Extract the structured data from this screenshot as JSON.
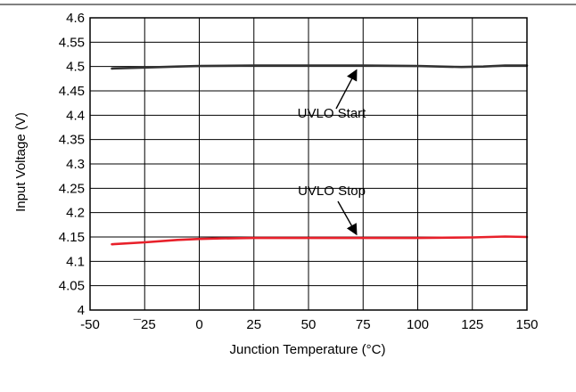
{
  "chart_data": {
    "type": "line",
    "title": "",
    "xlabel": "Junction Temperature (°C)",
    "ylabel": "Input Voltage (V)",
    "xlim": [
      -50,
      150
    ],
    "ylim": [
      4,
      4.6
    ],
    "xticks": [
      -50,
      -25,
      0,
      25,
      50,
      75,
      100,
      125,
      150
    ],
    "xtick_labels": [
      "-50",
      "¯25",
      "0",
      "25",
      "50",
      "75",
      "100",
      "125",
      "150"
    ],
    "yticks": [
      4,
      4.05,
      4.1,
      4.15,
      4.2,
      4.25,
      4.3,
      4.35,
      4.4,
      4.45,
      4.5,
      4.55,
      4.6
    ],
    "ytick_labels": [
      "4",
      "4.05",
      "4.1",
      "4.15",
      "4.2",
      "4.25",
      "4.3",
      "4.35",
      "4.4",
      "4.45",
      "4.5",
      "4.55",
      "4.6"
    ],
    "grid": true,
    "series": [
      {
        "name": "UVLO Start",
        "color": "#333333",
        "x": [
          -40,
          -25,
          -10,
          0,
          25,
          50,
          75,
          100,
          110,
          120,
          130,
          140,
          150
        ],
        "y": [
          4.496,
          4.498,
          4.5,
          4.501,
          4.502,
          4.502,
          4.502,
          4.501,
          4.5,
          4.499,
          4.5,
          4.502,
          4.502
        ]
      },
      {
        "name": "UVLO Stop",
        "color": "#e8202a",
        "x": [
          -40,
          -25,
          -10,
          0,
          10,
          25,
          50,
          75,
          100,
          125,
          140,
          150
        ],
        "y": [
          4.135,
          4.139,
          4.144,
          4.146,
          4.147,
          4.148,
          4.148,
          4.148,
          4.148,
          4.149,
          4.151,
          4.15
        ]
      }
    ],
    "annotations": [
      {
        "text": "UVLO Start",
        "arrow_to": [
          72,
          4.502
        ]
      },
      {
        "text": "UVLO Stop",
        "arrow_to": [
          72,
          4.148
        ]
      }
    ]
  }
}
